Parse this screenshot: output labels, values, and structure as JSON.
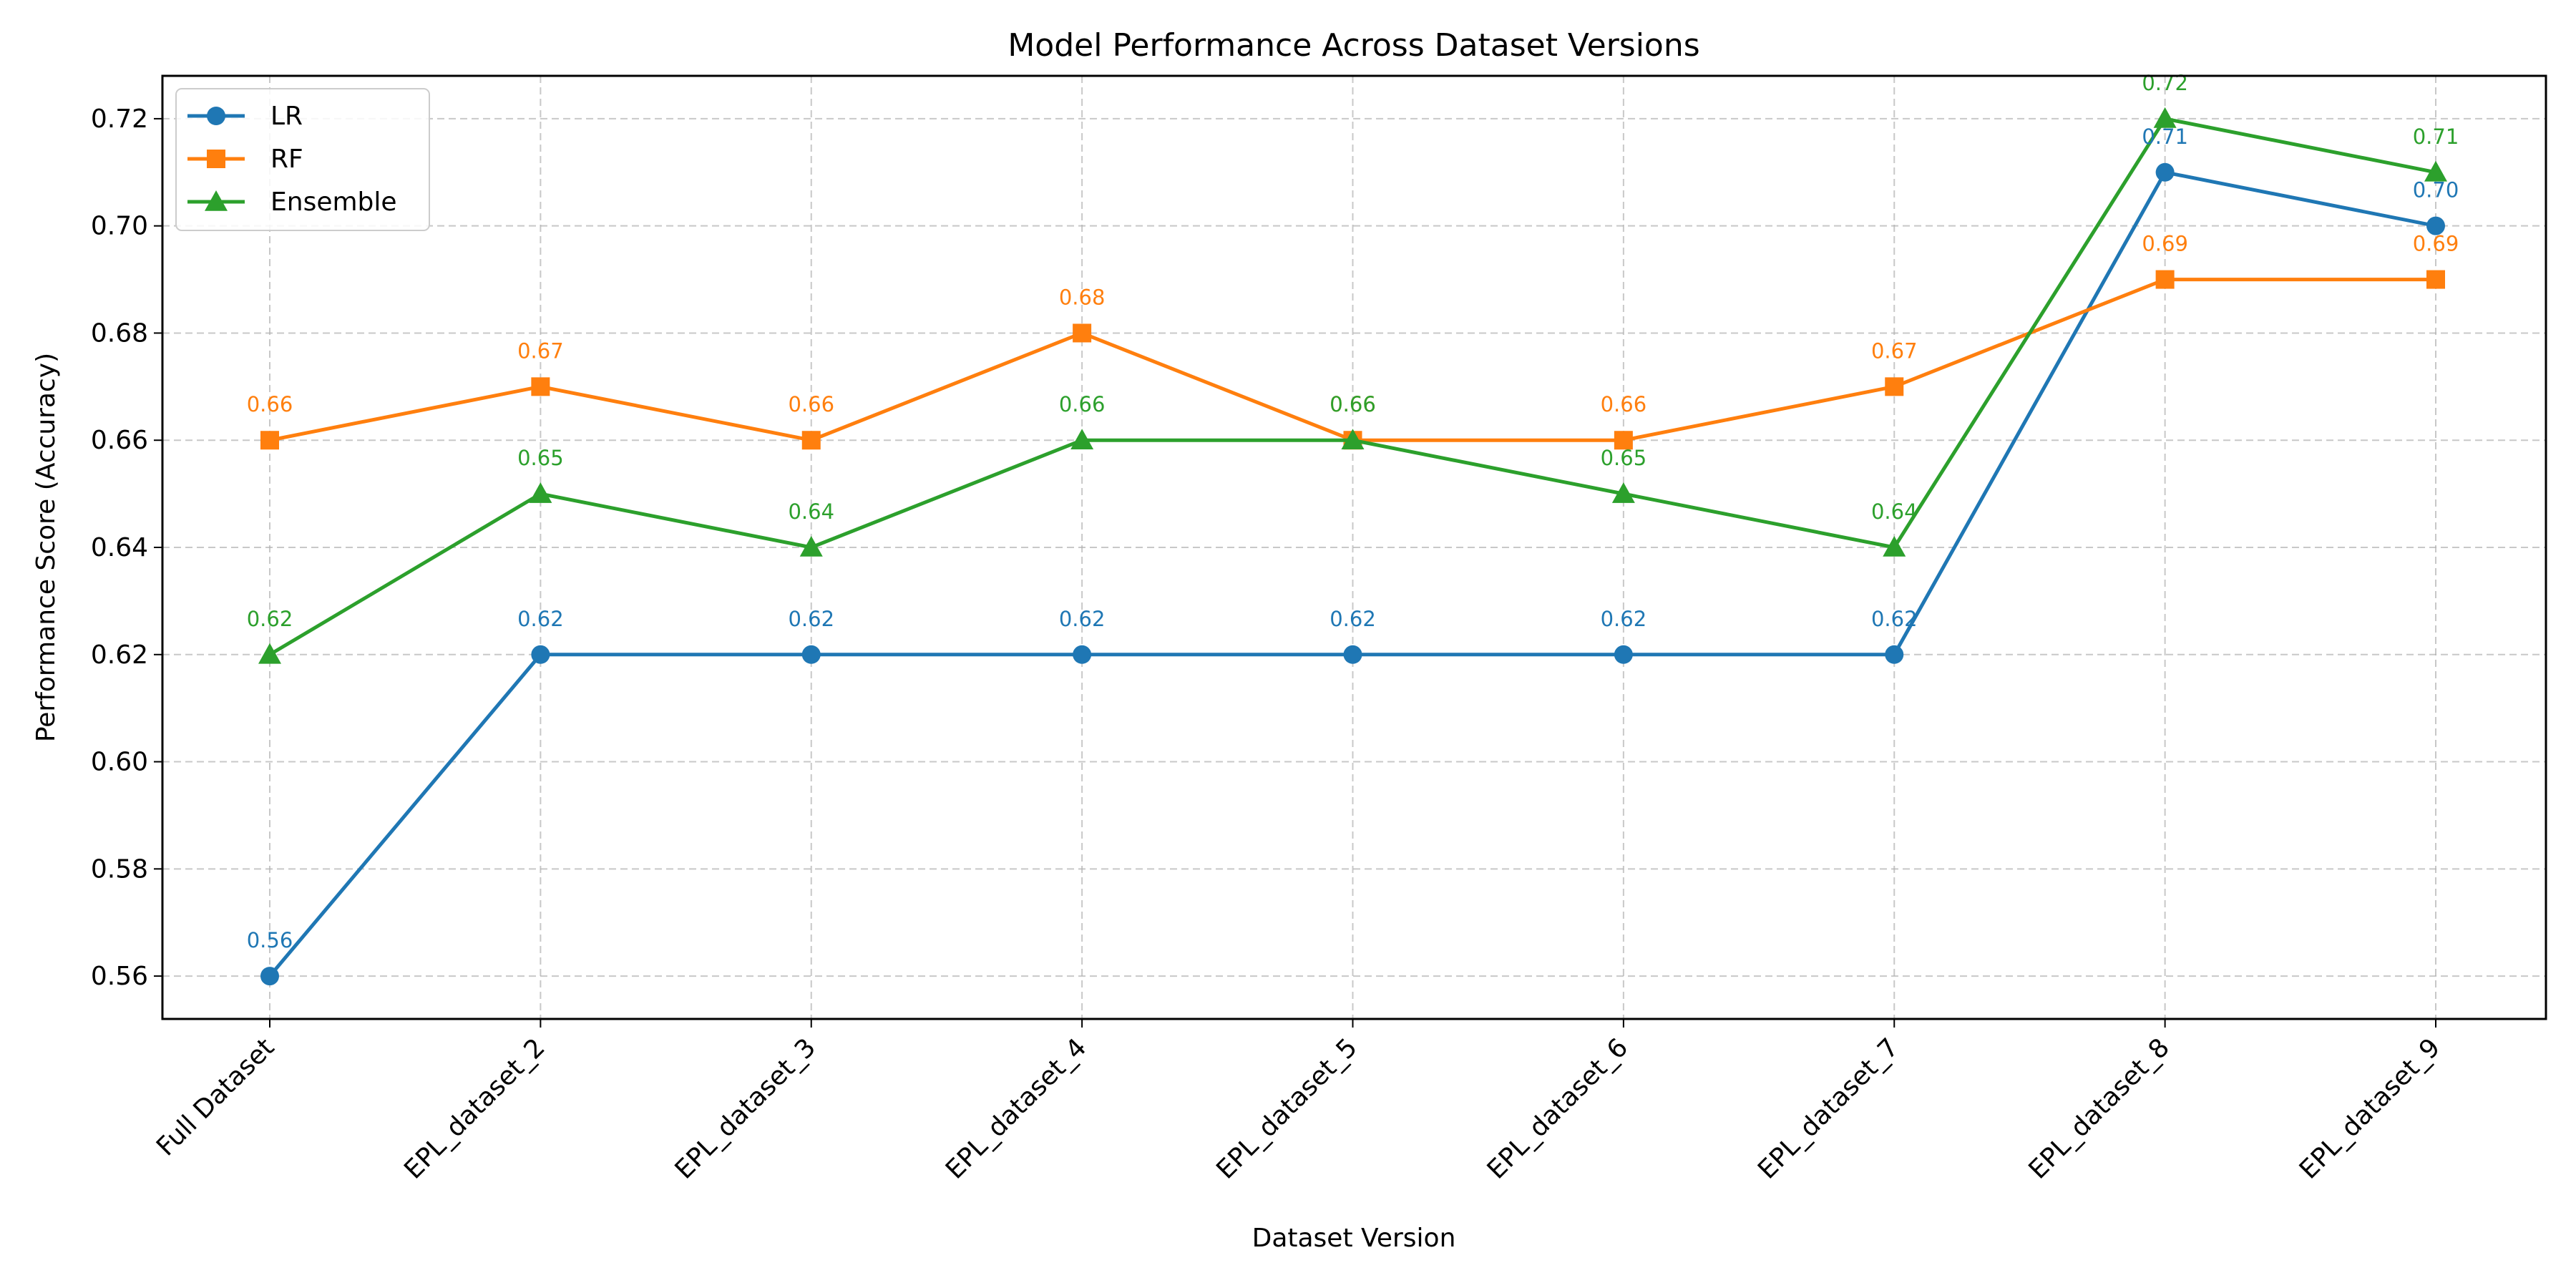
{
  "chart_data": {
    "type": "line",
    "title": "Model Performance Across Dataset Versions",
    "xlabel": "Dataset Version",
    "ylabel": "Performance Score (Accuracy)",
    "categories": [
      "Full Dataset",
      "EPL_dataset_2",
      "EPL_dataset_3",
      "EPL_dataset_4",
      "EPL_dataset_5",
      "EPL_dataset_6",
      "EPL_dataset_7",
      "EPL_dataset_8",
      "EPL_dataset_9"
    ],
    "ylim": [
      0.552,
      0.728
    ],
    "yticks": [
      0.56,
      0.58,
      0.6,
      0.62,
      0.64,
      0.66,
      0.68,
      0.7,
      0.72
    ],
    "ytick_labels": [
      "0.56",
      "0.58",
      "0.60",
      "0.62",
      "0.64",
      "0.66",
      "0.68",
      "0.70",
      "0.72"
    ],
    "grid": true,
    "legend_position": "top-left",
    "series": [
      {
        "name": "LR",
        "color": "#1f77b4",
        "marker": "circle",
        "values": [
          0.56,
          0.62,
          0.62,
          0.62,
          0.62,
          0.62,
          0.62,
          0.71,
          0.7
        ],
        "labels": [
          "0.56",
          "0.62",
          "0.62",
          "0.62",
          "0.62",
          "0.62",
          "0.62",
          "0.71",
          "0.70"
        ]
      },
      {
        "name": "RF",
        "color": "#ff7f0e",
        "marker": "square",
        "values": [
          0.66,
          0.67,
          0.66,
          0.68,
          0.66,
          0.66,
          0.67,
          0.69,
          0.69
        ],
        "labels": [
          "0.66",
          "0.67",
          "0.66",
          "0.68",
          "0.66",
          "0.66",
          "0.67",
          "0.69",
          "0.69"
        ]
      },
      {
        "name": "Ensemble",
        "color": "#2ca02c",
        "marker": "triangle",
        "values": [
          0.62,
          0.65,
          0.64,
          0.66,
          0.66,
          0.65,
          0.64,
          0.72,
          0.71
        ],
        "labels": [
          "0.62",
          "0.65",
          "0.64",
          "0.66",
          "0.66",
          "0.65",
          "0.64",
          "0.72",
          "0.71"
        ]
      }
    ]
  }
}
